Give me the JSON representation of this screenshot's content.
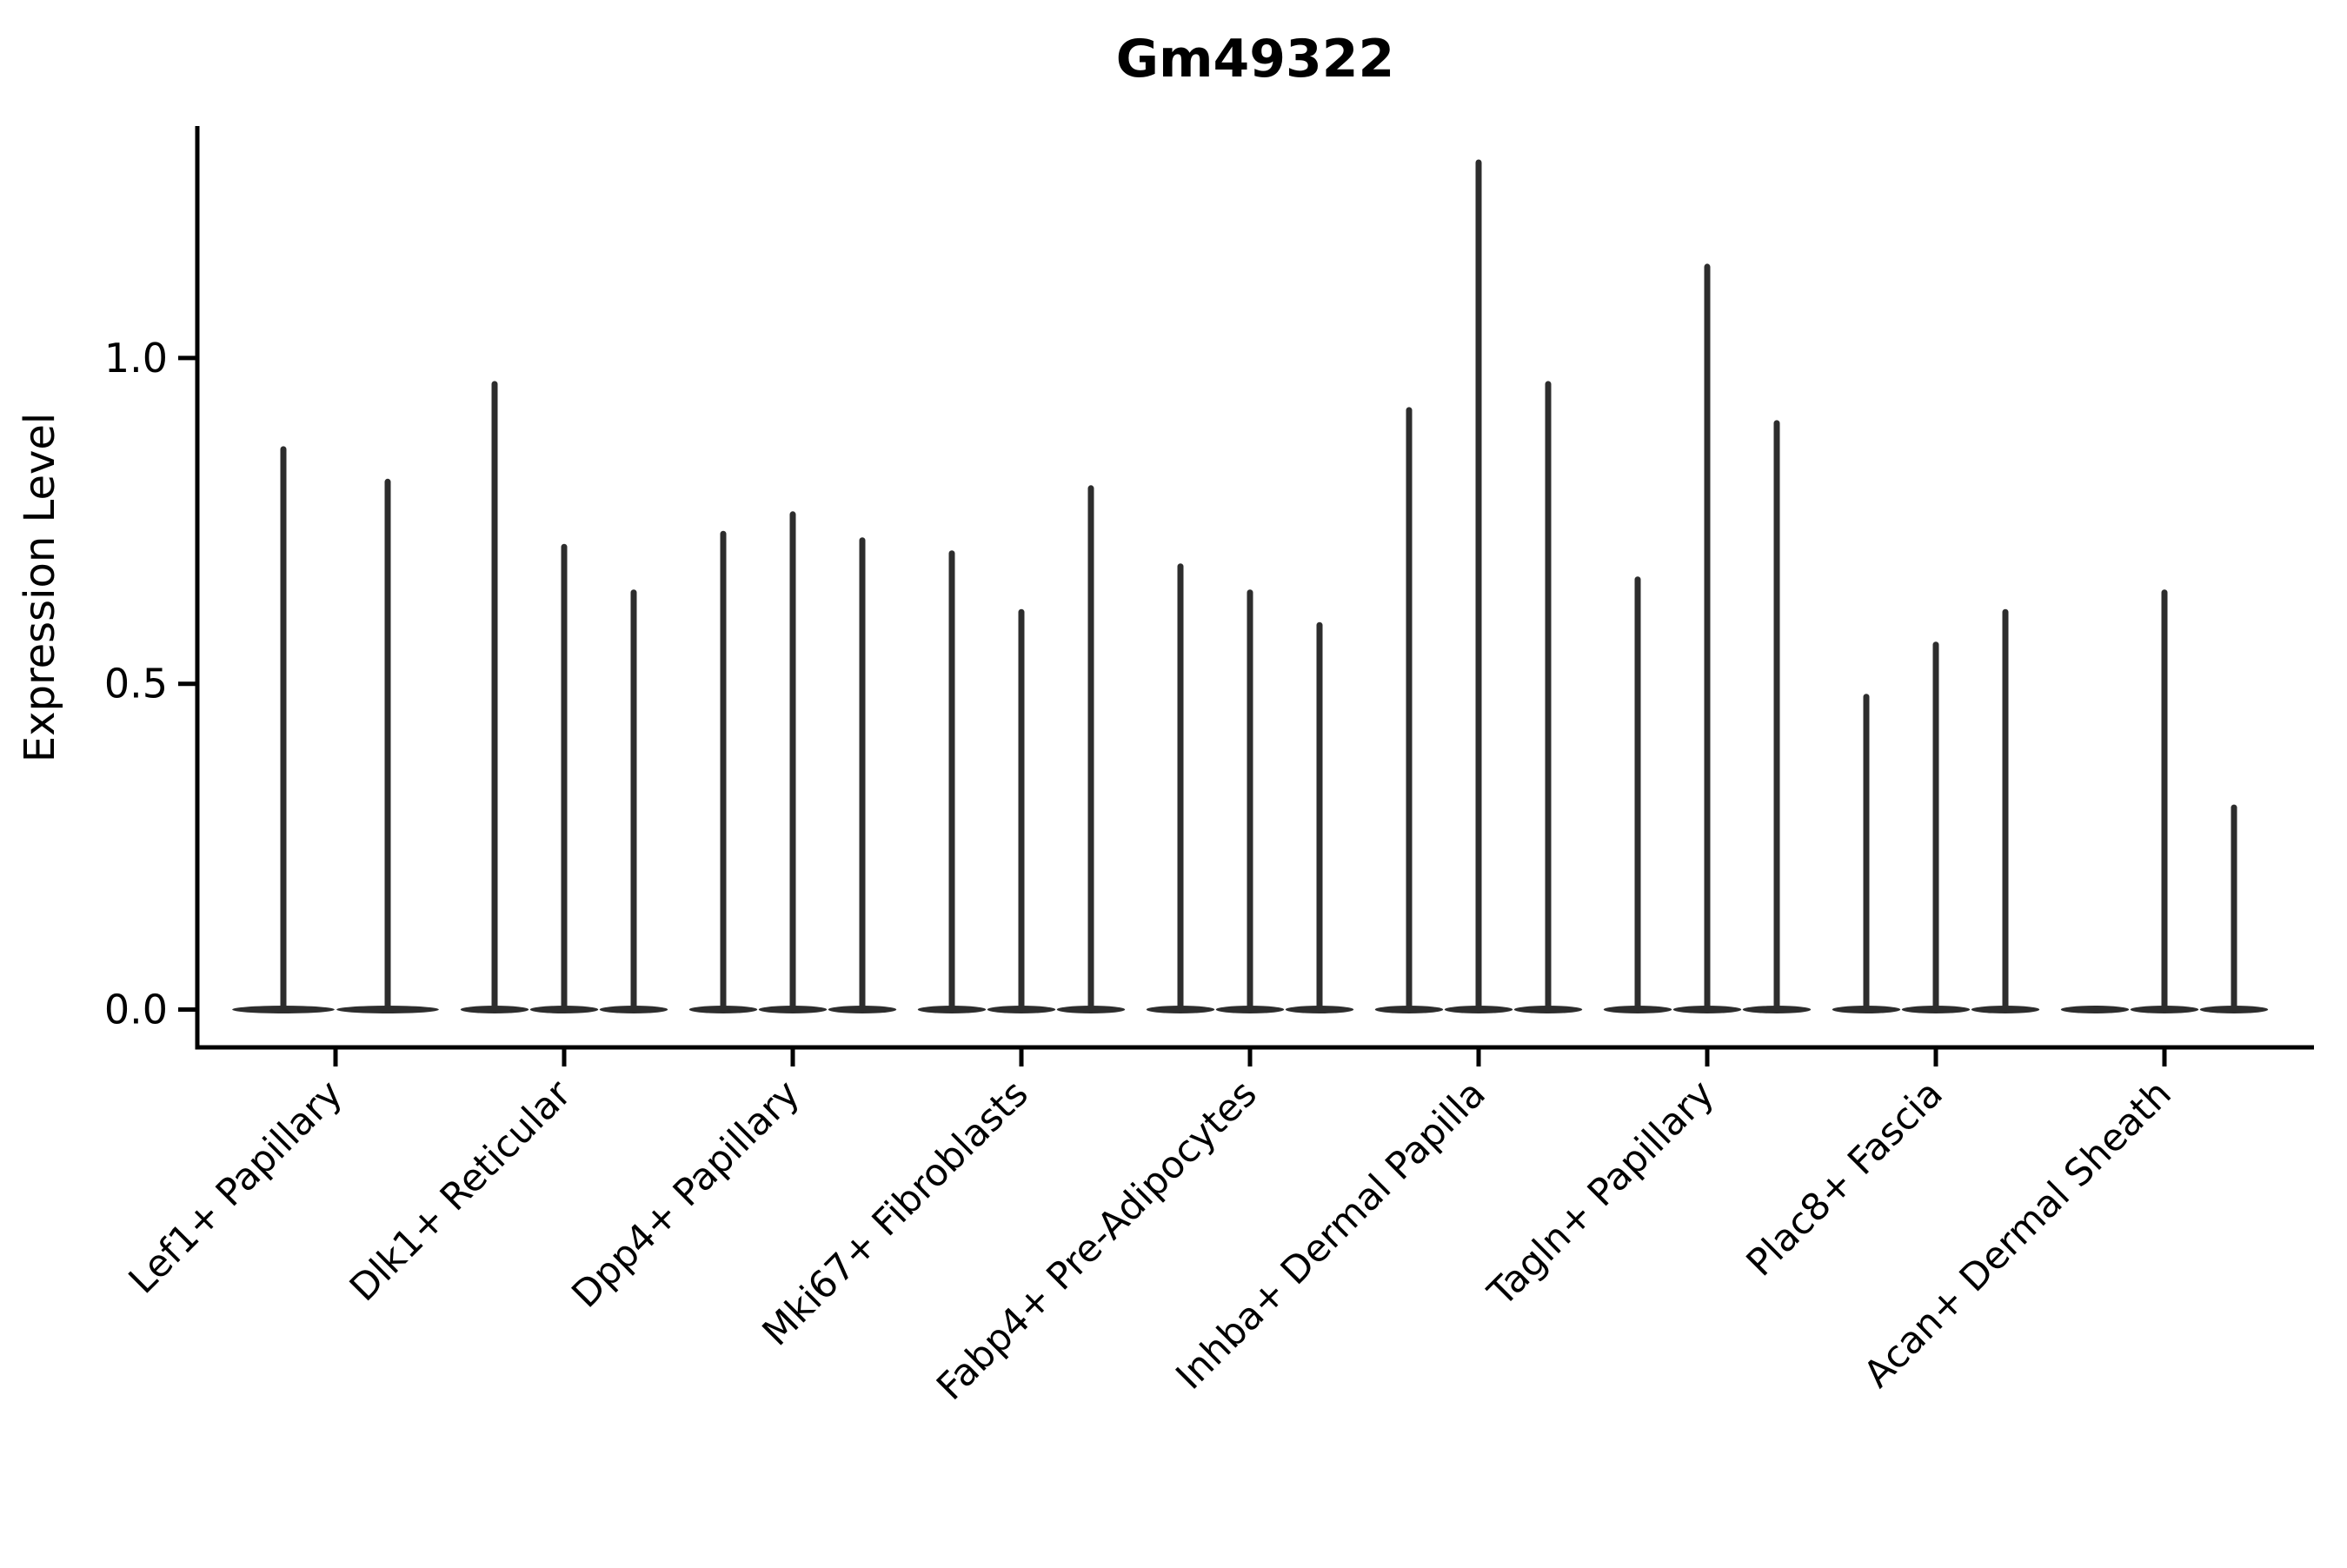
{
  "chart_data": {
    "type": "violin",
    "title": "Gm49322",
    "ylabel": "Expression Level",
    "xlabel": "",
    "ytick_values": [
      0.0,
      0.5,
      1.0
    ],
    "ytick_labels": [
      "0.0",
      "0.5",
      "1.0"
    ],
    "ylim": [
      -0.058,
      1.356
    ],
    "grid": false,
    "legend": null,
    "ink_color": "#000000",
    "violin_color": "#2d2d2d",
    "categories": [
      "Lef1+ Papillary",
      "Dlk1+ Reticular",
      "Dpp4+ Papillary",
      "Mki67+ Fibroblasts",
      "Fabp4+ Pre-Adipocytes",
      "Inhba+ Dermal Papilla",
      "Tagln+ Papillary",
      "Plac8+ Fascia",
      "Acan+ Dermal Sheath"
    ],
    "groups": [
      {
        "label": "Lef1+ Papillary",
        "violin_max_expression": [
          0.86,
          0.81
        ]
      },
      {
        "label": "Dlk1+ Reticular",
        "violin_max_expression": [
          0.96,
          0.71,
          0.64
        ]
      },
      {
        "label": "Dpp4+ Papillary",
        "violin_max_expression": [
          0.73,
          0.76,
          0.72
        ]
      },
      {
        "label": "Mki67+ Fibroblasts",
        "violin_max_expression": [
          0.7,
          0.61,
          0.8
        ]
      },
      {
        "label": "Fabp4+ Pre-Adipocytes",
        "violin_max_expression": [
          0.68,
          0.64,
          0.59
        ]
      },
      {
        "label": "Inhba+ Dermal Papilla",
        "violin_max_expression": [
          0.92,
          1.3,
          0.96
        ]
      },
      {
        "label": "Tagln+ Papillary",
        "violin_max_expression": [
          0.66,
          1.14,
          0.9
        ]
      },
      {
        "label": "Plac8+ Fascia",
        "violin_max_expression": [
          0.48,
          0.56,
          0.61
        ]
      },
      {
        "label": "Acan+ Dermal Sheath",
        "violin_max_expression": [
          0.0,
          0.64,
          0.31
        ]
      }
    ]
  }
}
